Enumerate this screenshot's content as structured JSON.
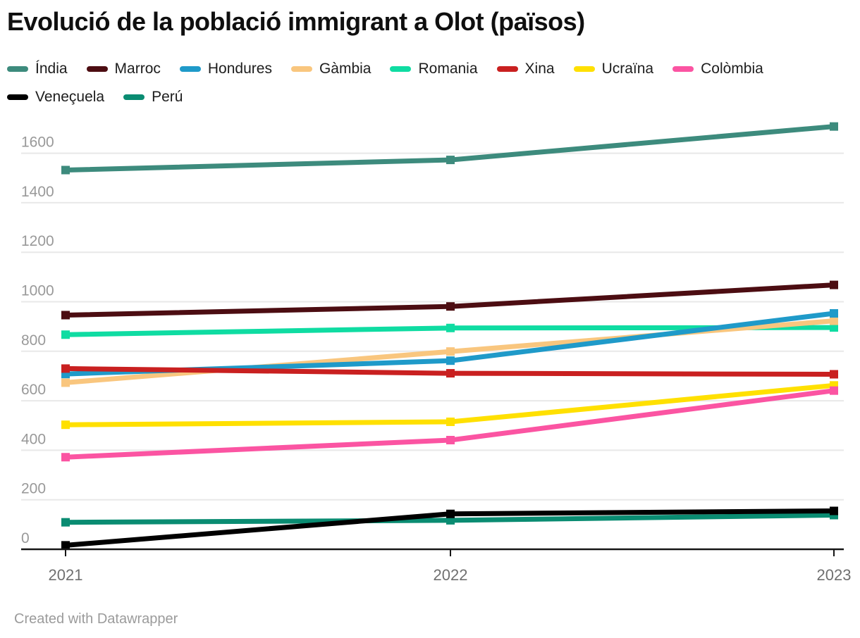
{
  "title": "Evolució de la població immigrant a Olot (països)",
  "footer": "Created with Datawrapper",
  "chart_data": {
    "type": "line",
    "title": "Evolució de la població immigrant a Olot (països)",
    "x": [
      2021,
      2022,
      2023
    ],
    "series": [
      {
        "name": "Índia",
        "color": "#3D8B7D",
        "values": [
          1532,
          1573,
          1708
        ]
      },
      {
        "name": "Marroc",
        "color": "#4C0D12",
        "values": [
          946,
          981,
          1068
        ]
      },
      {
        "name": "Hondures",
        "color": "#1F9AC9",
        "values": [
          708,
          762,
          953
        ]
      },
      {
        "name": "Gàmbia",
        "color": "#F9C67E",
        "values": [
          673,
          799,
          923
        ]
      },
      {
        "name": "Romania",
        "color": "#0FDCA2",
        "values": [
          867,
          894,
          896
        ]
      },
      {
        "name": "Xina",
        "color": "#C92020",
        "values": [
          730,
          711,
          707
        ]
      },
      {
        "name": "Ucraïna",
        "color": "#FFE000",
        "values": [
          503,
          515,
          662
        ]
      },
      {
        "name": "Colòmbia",
        "color": "#FB54A2",
        "values": [
          372,
          441,
          641
        ]
      },
      {
        "name": "Veneçuela",
        "color": "#000000",
        "values": [
          16,
          143,
          155
        ]
      },
      {
        "name": "Perú",
        "color": "#0A8C72",
        "values": [
          109,
          117,
          138
        ]
      }
    ],
    "xlabel": "",
    "ylabel": "",
    "ylim": [
      0,
      1770
    ],
    "yticks": [
      0,
      200,
      400,
      600,
      800,
      1000,
      1200,
      1400,
      1600
    ],
    "grid": "horizontal",
    "legend_position": "top",
    "grid_color": "#e8e8e8",
    "axis_color": "#161616",
    "ytick_label_color": "#999999",
    "xtick_label_color": "#707070"
  }
}
